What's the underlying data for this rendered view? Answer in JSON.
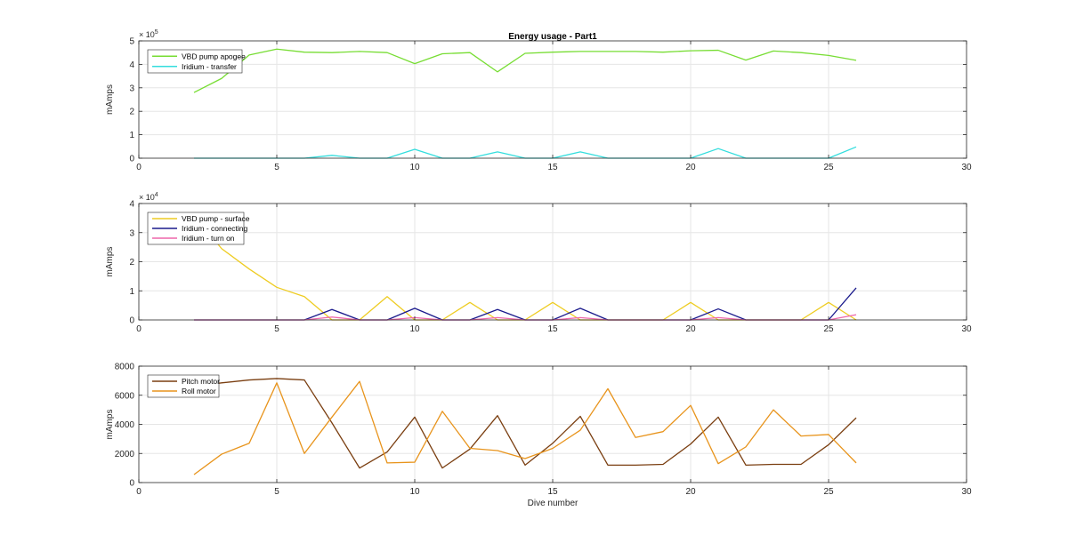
{
  "figure": {
    "title": "Energy usage - Part1"
  },
  "chart_data": [
    {
      "type": "line",
      "title": "Energy usage - Part1",
      "xlabel": "",
      "ylabel": "mAmps",
      "xlim": [
        0,
        30
      ],
      "ylim": [
        0,
        500000
      ],
      "xticks": [
        0,
        5,
        10,
        15,
        20,
        25,
        30
      ],
      "yticks": [
        0,
        100000,
        200000,
        300000,
        400000,
        500000
      ],
      "ytick_labels": [
        "0",
        "1",
        "2",
        "3",
        "4",
        "5"
      ],
      "exponent_base": "× 10",
      "exponent": "5",
      "grid": true,
      "legend_position": "top-left",
      "x": [
        2,
        3,
        4,
        5,
        6,
        7,
        8,
        9,
        10,
        11,
        12,
        13,
        14,
        15,
        16,
        17,
        18,
        19,
        20,
        21,
        22,
        23,
        24,
        25,
        26
      ],
      "series": [
        {
          "name": "VBD pump apogee",
          "color": "#77dd33",
          "values": [
            280000,
            340000,
            440000,
            465000,
            452000,
            450000,
            455000,
            450000,
            403000,
            445000,
            450000,
            368000,
            447000,
            452000,
            455000,
            455000,
            455000,
            452000,
            458000,
            460000,
            418000,
            457000,
            450000,
            438000,
            417000
          ]
        },
        {
          "name": "Iridium - transfer",
          "color": "#33dddd",
          "values": [
            0,
            0,
            0,
            0,
            0,
            12000,
            0,
            0,
            38000,
            0,
            0,
            27000,
            0,
            0,
            27000,
            0,
            0,
            0,
            0,
            41000,
            0,
            0,
            0,
            0,
            48000
          ]
        }
      ]
    },
    {
      "type": "line",
      "title": "",
      "xlabel": "",
      "ylabel": "mAmps",
      "xlim": [
        0,
        30
      ],
      "ylim": [
        0,
        40000
      ],
      "xticks": [
        0,
        5,
        10,
        15,
        20,
        25,
        30
      ],
      "yticks": [
        0,
        10000,
        20000,
        30000,
        40000
      ],
      "ytick_labels": [
        "0",
        "1",
        "2",
        "3",
        "4"
      ],
      "exponent_base": "× 10",
      "exponent": "4",
      "grid": true,
      "legend_position": "top-left",
      "x": [
        2,
        3,
        4,
        5,
        6,
        7,
        8,
        9,
        10,
        11,
        12,
        13,
        14,
        15,
        16,
        17,
        18,
        19,
        20,
        21,
        22,
        23,
        24,
        25,
        26
      ],
      "series": [
        {
          "name": "VBD pump - surface",
          "color": "#eecc22",
          "values": [
            36000,
            24500,
            17500,
            11200,
            8000,
            0,
            0,
            8000,
            0,
            0,
            6000,
            0,
            0,
            6000,
            0,
            0,
            0,
            0,
            6000,
            0,
            0,
            0,
            0,
            6000,
            0
          ]
        },
        {
          "name": "Iridium - connecting",
          "color": "#1a1a8c",
          "values": [
            0,
            0,
            0,
            0,
            0,
            3600,
            0,
            0,
            4000,
            0,
            0,
            3600,
            0,
            0,
            4000,
            0,
            0,
            0,
            0,
            3800,
            0,
            0,
            0,
            0,
            11000
          ]
        },
        {
          "name": "Iridium - turn on",
          "color": "#ee66aa",
          "values": [
            0,
            0,
            0,
            0,
            0,
            1000,
            0,
            0,
            800,
            0,
            0,
            800,
            0,
            0,
            800,
            0,
            0,
            0,
            0,
            800,
            0,
            0,
            0,
            0,
            1800
          ]
        }
      ]
    },
    {
      "type": "line",
      "title": "",
      "xlabel": "Dive number",
      "ylabel": "mAmps",
      "xlim": [
        0,
        30
      ],
      "ylim": [
        0,
        8000
      ],
      "xticks": [
        0,
        5,
        10,
        15,
        20,
        25,
        30
      ],
      "yticks": [
        0,
        2000,
        4000,
        6000,
        8000
      ],
      "ytick_labels": [
        "0",
        "2000",
        "4000",
        "6000",
        "8000"
      ],
      "grid": true,
      "legend_position": "top-left",
      "x": [
        2,
        3,
        4,
        5,
        6,
        7,
        8,
        9,
        10,
        11,
        12,
        13,
        14,
        15,
        16,
        17,
        18,
        19,
        20,
        21,
        22,
        23,
        24,
        25,
        26
      ],
      "series": [
        {
          "name": "Pitch motor",
          "color": "#7a3e10",
          "values": [
            6600,
            6850,
            7050,
            7150,
            7050,
            4100,
            1000,
            2100,
            4500,
            1000,
            2300,
            4600,
            1200,
            2700,
            4550,
            1200,
            1200,
            1250,
            2650,
            4500,
            1200,
            1250,
            1250,
            2600,
            4450
          ]
        },
        {
          "name": "Roll motor",
          "color": "#e8941c",
          "values": [
            550,
            1950,
            2700,
            6850,
            2000,
            4500,
            6950,
            1350,
            1400,
            4900,
            2350,
            2200,
            1650,
            2350,
            3600,
            6450,
            3100,
            3500,
            5300,
            1300,
            2450,
            5000,
            3200,
            3300,
            1350
          ]
        }
      ]
    }
  ]
}
